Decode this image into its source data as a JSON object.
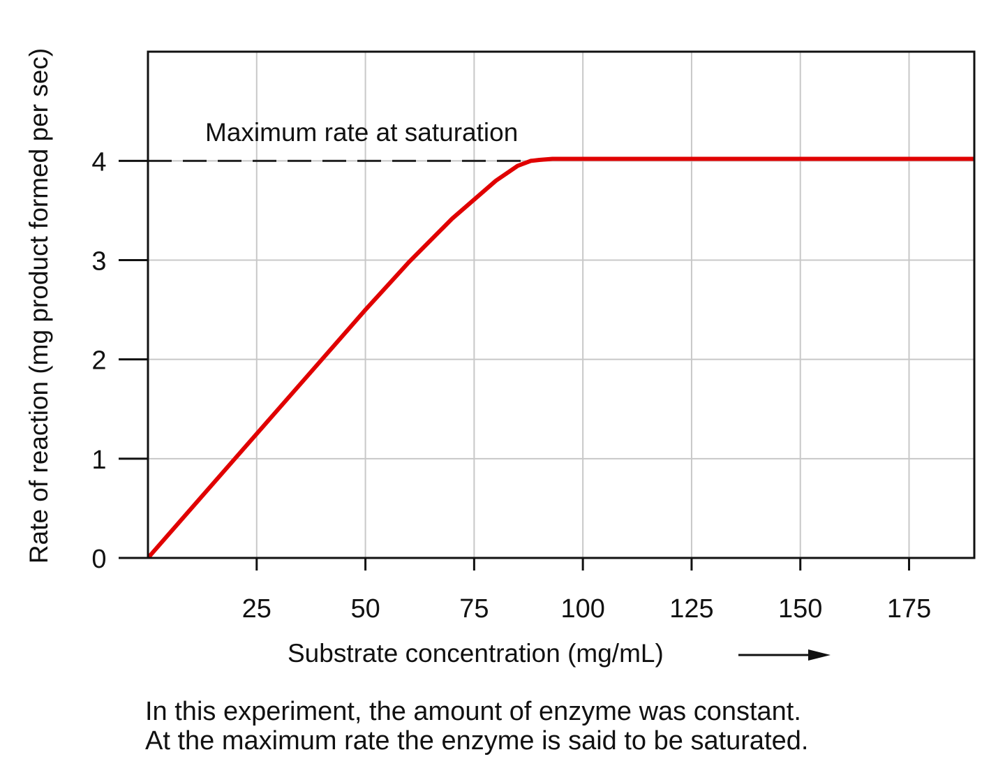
{
  "chart_data": {
    "type": "line",
    "title": "",
    "xlabel": "Substrate concentration (mg/mL)",
    "ylabel": "Rate of reaction (mg product formed per sec)",
    "xlim": [
      0,
      190
    ],
    "ylim": [
      0,
      5.1
    ],
    "x_ticks": [
      25,
      50,
      75,
      100,
      125,
      150,
      175
    ],
    "y_ticks": [
      0,
      1,
      2,
      3,
      4
    ],
    "grid": true,
    "series": [
      {
        "name": "Reaction rate",
        "color": "#e00000",
        "x": [
          0,
          10,
          20,
          30,
          40,
          50,
          60,
          70,
          80,
          85,
          88,
          90,
          93,
          95,
          100,
          125,
          150,
          175,
          190
        ],
        "y": [
          0,
          0.5,
          1.0,
          1.5,
          2.0,
          2.5,
          2.98,
          3.42,
          3.8,
          3.95,
          4.0,
          4.01,
          4.02,
          4.02,
          4.02,
          4.02,
          4.02,
          4.02,
          4.02
        ]
      }
    ],
    "reference_line": {
      "y": 4,
      "style": "dashed",
      "color": "#222222"
    },
    "annotation": "Maximum rate at saturation"
  },
  "caption": {
    "line1": "In this experiment, the amount of enzyme was constant.",
    "line2": "At the maximum rate the enzyme is said to be saturated."
  }
}
